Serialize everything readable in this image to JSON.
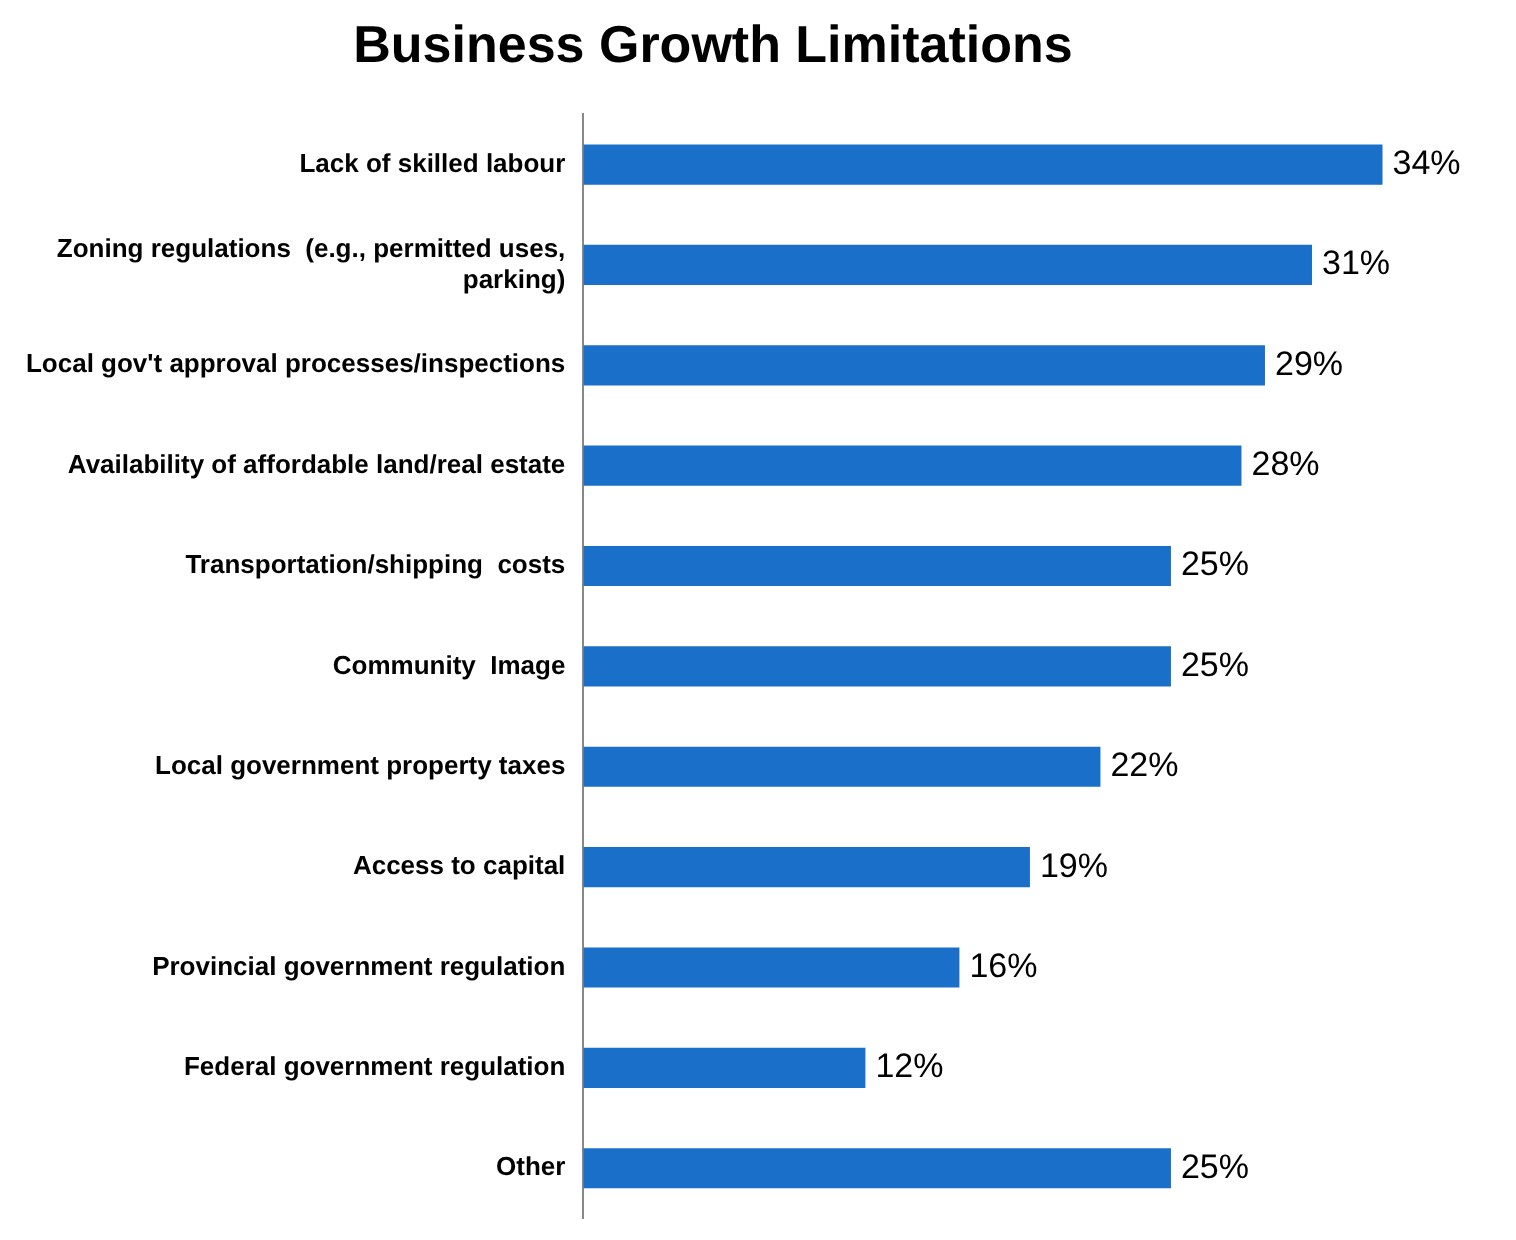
{
  "chart_data": {
    "type": "bar",
    "orientation": "horizontal",
    "title": "Business Growth Limitations",
    "categories": [
      "Lack of skilled labour",
      "Zoning regulations  (e.g., permitted uses, parking)",
      "Local gov't approval processes/inspections",
      "Availability of affordable land/real estate",
      "Transportation/shipping  costs",
      "Community  Image",
      "Local government property taxes",
      "Access to capital",
      "Provincial government regulation",
      "Federal government regulation",
      "Other"
    ],
    "values": [
      34,
      31,
      29,
      28,
      25,
      25,
      22,
      19,
      16,
      12,
      25
    ],
    "value_labels": [
      "34%",
      "31%",
      "29%",
      "28%",
      "25%",
      "25%",
      "22%",
      "19%",
      "16%",
      "12%",
      "25%"
    ],
    "color": "#1a6fc9",
    "legend": false
  }
}
